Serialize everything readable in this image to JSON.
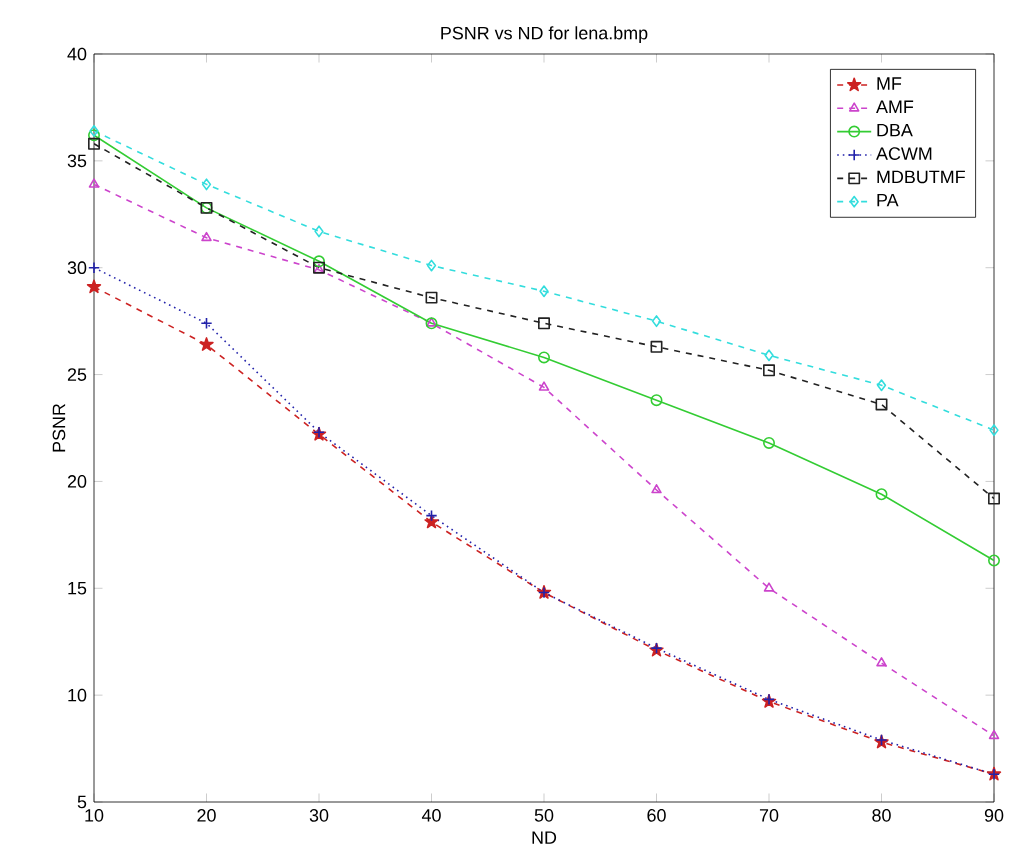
{
  "chart_data": {
    "type": "line",
    "title": "PSNR vs ND for lena.bmp",
    "xlabel": "ND",
    "ylabel": "PSNR",
    "x": [
      10,
      20,
      30,
      40,
      50,
      60,
      70,
      80,
      90
    ],
    "series": [
      {
        "name": "MF",
        "color": "#cc2222",
        "marker": "star",
        "line_style": "dashed",
        "values": [
          29.1,
          26.4,
          22.2,
          18.1,
          14.8,
          12.1,
          9.7,
          7.8,
          6.3
        ]
      },
      {
        "name": "AMF",
        "color": "#cc44cc",
        "marker": "triangle",
        "line_style": "dashed",
        "values": [
          33.9,
          31.4,
          29.9,
          27.4,
          24.4,
          19.6,
          15.0,
          11.5,
          8.1
        ]
      },
      {
        "name": "DBA",
        "color": "#33cc33",
        "marker": "circle",
        "line_style": "solid",
        "values": [
          36.2,
          32.8,
          30.3,
          27.4,
          25.8,
          23.8,
          21.8,
          19.4,
          16.3
        ]
      },
      {
        "name": "ACWM",
        "color": "#2222aa",
        "marker": "cross",
        "line_style": "dotted",
        "values": [
          30.0,
          27.4,
          22.3,
          18.4,
          14.8,
          12.2,
          9.8,
          7.9,
          6.3
        ]
      },
      {
        "name": "MDBUTMF",
        "color": "#222222",
        "marker": "square",
        "line_style": "dashed",
        "values": [
          35.8,
          32.8,
          30.0,
          28.6,
          27.4,
          26.3,
          25.2,
          23.6,
          19.2
        ]
      },
      {
        "name": "PA",
        "color": "#33dddd",
        "marker": "diamond",
        "line_style": "dashed",
        "values": [
          36.4,
          33.9,
          31.7,
          30.1,
          28.9,
          27.5,
          25.9,
          24.5,
          22.4
        ]
      }
    ],
    "xlim": [
      10,
      90
    ],
    "ylim": [
      5,
      40
    ],
    "xticks": [
      10,
      20,
      30,
      40,
      50,
      60,
      70,
      80,
      90
    ],
    "yticks": [
      5,
      10,
      15,
      20,
      25,
      30,
      35,
      40
    ],
    "grid": false,
    "legend": "top right"
  }
}
